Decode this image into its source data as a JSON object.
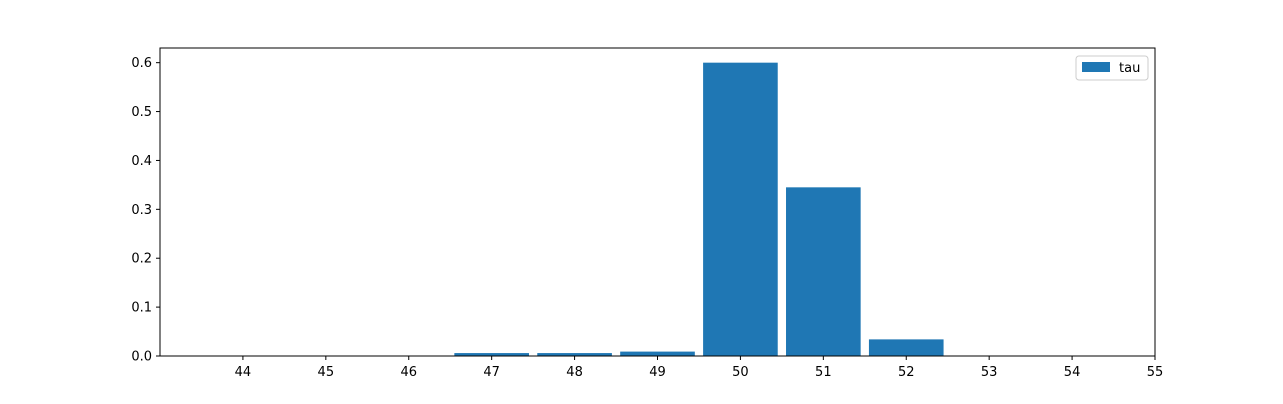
{
  "chart_data": {
    "type": "bar",
    "categories": [
      "47",
      "48",
      "49",
      "50",
      "51",
      "52"
    ],
    "x": [
      47,
      48,
      49,
      50,
      51,
      52
    ],
    "series": [
      {
        "name": "tau",
        "values": [
          0.006,
          0.006,
          0.009,
          0.6,
          0.345,
          0.034
        ],
        "color": "#1f77b4"
      }
    ],
    "xticks": [
      44,
      45,
      46,
      47,
      48,
      49,
      50,
      51,
      52,
      53,
      54,
      55
    ],
    "xtick_labels": [
      "44",
      "45",
      "46",
      "47",
      "48",
      "49",
      "50",
      "51",
      "52",
      "53",
      "54",
      "55"
    ],
    "yticks": [
      0.0,
      0.1,
      0.2,
      0.3,
      0.4,
      0.5,
      0.6
    ],
    "ytick_labels": [
      "0.0",
      "0.1",
      "0.2",
      "0.3",
      "0.4",
      "0.5",
      "0.6"
    ],
    "xlim": [
      43,
      55
    ],
    "ylim": [
      0,
      0.63
    ],
    "bar_width": 0.9,
    "title": "",
    "xlabel": "",
    "ylabel": "",
    "grid": false,
    "legend": {
      "position": "top-right",
      "entries": [
        "tau"
      ]
    }
  }
}
